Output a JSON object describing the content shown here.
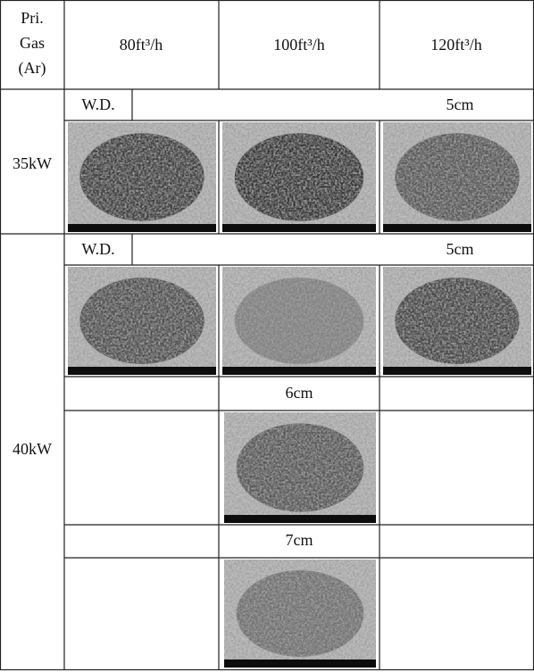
{
  "header": {
    "corner": [
      "Pri.",
      "Gas",
      "(Ar)"
    ],
    "columns": [
      "80ft³/h",
      "100ft³/h",
      "120ft³/h"
    ]
  },
  "rows": [
    {
      "power": "35kW",
      "wd_label": "W.D.",
      "distances": [
        "5cm"
      ]
    },
    {
      "power": "40kW",
      "wd_label": "W.D.",
      "distances": [
        "5cm",
        "6cm",
        "7cm"
      ]
    }
  ]
}
